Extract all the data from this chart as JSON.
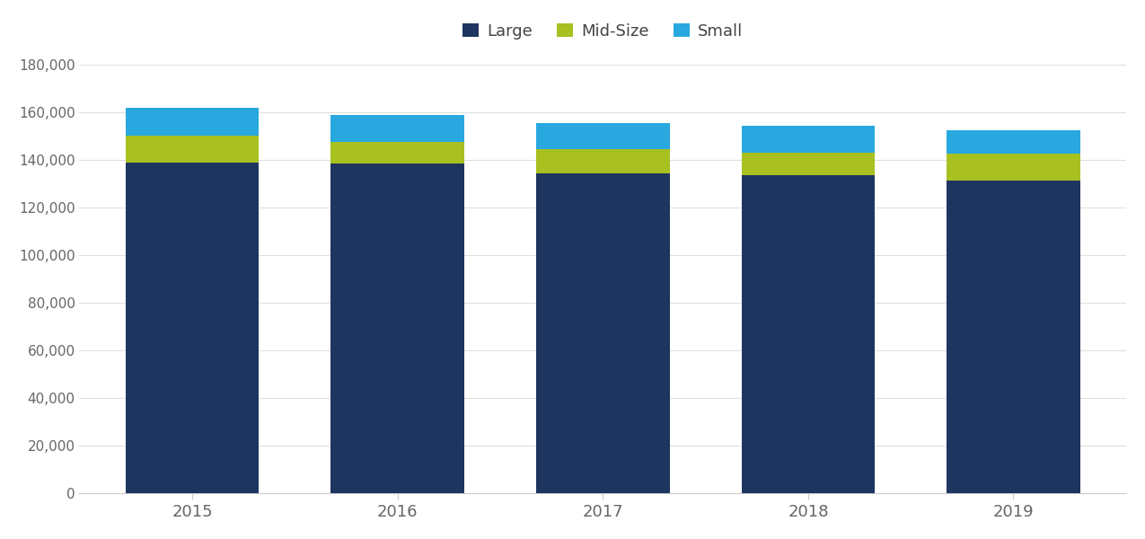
{
  "years": [
    "2015",
    "2016",
    "2017",
    "2018",
    "2019"
  ],
  "large": [
    139000,
    138500,
    134500,
    133500,
    131500
  ],
  "midsize": [
    11000,
    9000,
    10000,
    9500,
    11000
  ],
  "small": [
    12000,
    11500,
    11000,
    11500,
    10000
  ],
  "ylim": [
    0,
    180000
  ],
  "yticks": [
    0,
    20000,
    40000,
    60000,
    80000,
    100000,
    120000,
    140000,
    160000,
    180000
  ],
  "background_color": "#ffffff",
  "bar_color_large": "#1e3560",
  "bar_color_midsize": "#a8c020",
  "bar_color_small": "#29a8e0"
}
